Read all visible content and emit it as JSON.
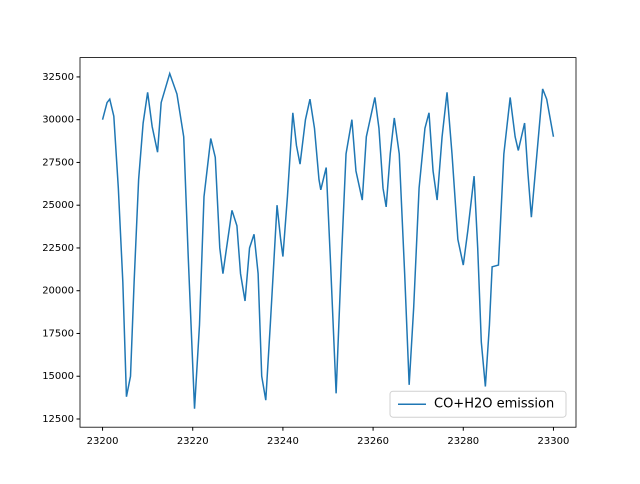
{
  "chart_data": {
    "type": "line",
    "x": [
      23200,
      23201,
      23201.6,
      23202.5,
      23203.5,
      23204.5,
      23205.3,
      23206.2,
      23207,
      23208,
      23209,
      23210,
      23211,
      23212.2,
      23213,
      23214.9,
      23216.5,
      23218,
      23219,
      23220.4,
      23221.5,
      23222.5,
      23224,
      23225,
      23226,
      23226.7,
      23227.5,
      23228.7,
      23229.8,
      23230.6,
      23231.6,
      23232.6,
      23233.6,
      23234.5,
      23235.3,
      23236.2,
      23237.2,
      23238.7,
      23239.5,
      23240,
      23241,
      23242.2,
      23243,
      23243.8,
      23245,
      23246,
      23247,
      23248,
      23248.4,
      23249.6,
      23250.5,
      23251.8,
      23253,
      23254,
      23255.3,
      23256.2,
      23257.6,
      23258.5,
      23260.4,
      23261.3,
      23262.2,
      23262.9,
      23263.8,
      23264.7,
      23265.8,
      23267,
      23268,
      23269,
      23270.2,
      23271.5,
      23272.4,
      23273.3,
      23274.2,
      23275.3,
      23276.4,
      23277.5,
      23278.8,
      23280,
      23281,
      23282.4,
      23283.2,
      23284,
      23284.9,
      23285.8,
      23286.4,
      23287.8,
      23289,
      23290.4,
      23291.5,
      23292.2,
      23293.6,
      23294.3,
      23295.1,
      23296,
      23297.6,
      23298.5,
      23300
    ],
    "series": [
      {
        "name": "CO+H2O emission",
        "color": "#1f77b4",
        "values": [
          30000,
          31000,
          31200,
          30200,
          26000,
          20500,
          13800,
          15000,
          20500,
          26500,
          29800,
          31600,
          29600,
          28100,
          31000,
          32700,
          31500,
          29000,
          22000,
          13100,
          18000,
          25500,
          28900,
          27800,
          22500,
          21000,
          22500,
          24700,
          23800,
          21000,
          19400,
          22500,
          23300,
          21000,
          15000,
          13600,
          18000,
          25000,
          23000,
          22000,
          25500,
          30400,
          28500,
          27400,
          30000,
          31200,
          29500,
          26500,
          25900,
          27200,
          22000,
          14000,
          22000,
          28000,
          30000,
          27000,
          25300,
          29000,
          31300,
          29500,
          26000,
          24900,
          28000,
          30100,
          28000,
          21000,
          14500,
          19000,
          26000,
          29500,
          30400,
          27000,
          25300,
          29000,
          31600,
          28000,
          23000,
          21500,
          23500,
          26700,
          22500,
          17000,
          14400,
          18000,
          21400,
          21500,
          28000,
          31300,
          29000,
          28200,
          29800,
          27000,
          24300,
          27000,
          31800,
          31200,
          29000
        ]
      }
    ],
    "xlim": [
      23195,
      23305
    ],
    "xticks": [
      23200,
      23220,
      23240,
      23260,
      23280,
      23300
    ],
    "ylim": [
      12020,
      33630
    ],
    "yticks": [
      12500,
      15000,
      17500,
      20000,
      22500,
      25000,
      27500,
      30000,
      32500
    ],
    "grid": false,
    "legend": "lower right"
  }
}
